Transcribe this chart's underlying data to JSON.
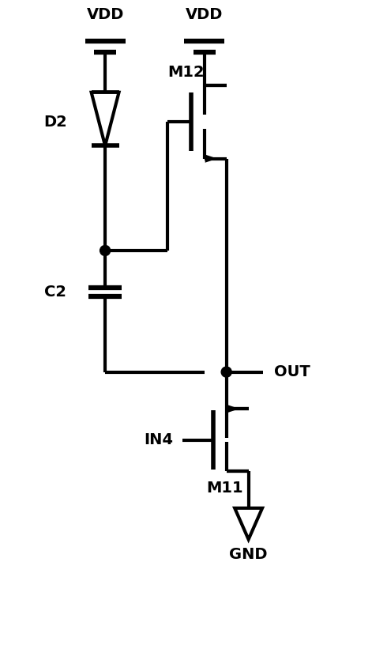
{
  "bg_color": "#ffffff",
  "line_color": "#000000",
  "line_width": 3.0,
  "fig_width": 4.71,
  "fig_height": 8.16,
  "dpi": 100,
  "xlim": [
    0,
    10
  ],
  "ylim": [
    0,
    17
  ]
}
